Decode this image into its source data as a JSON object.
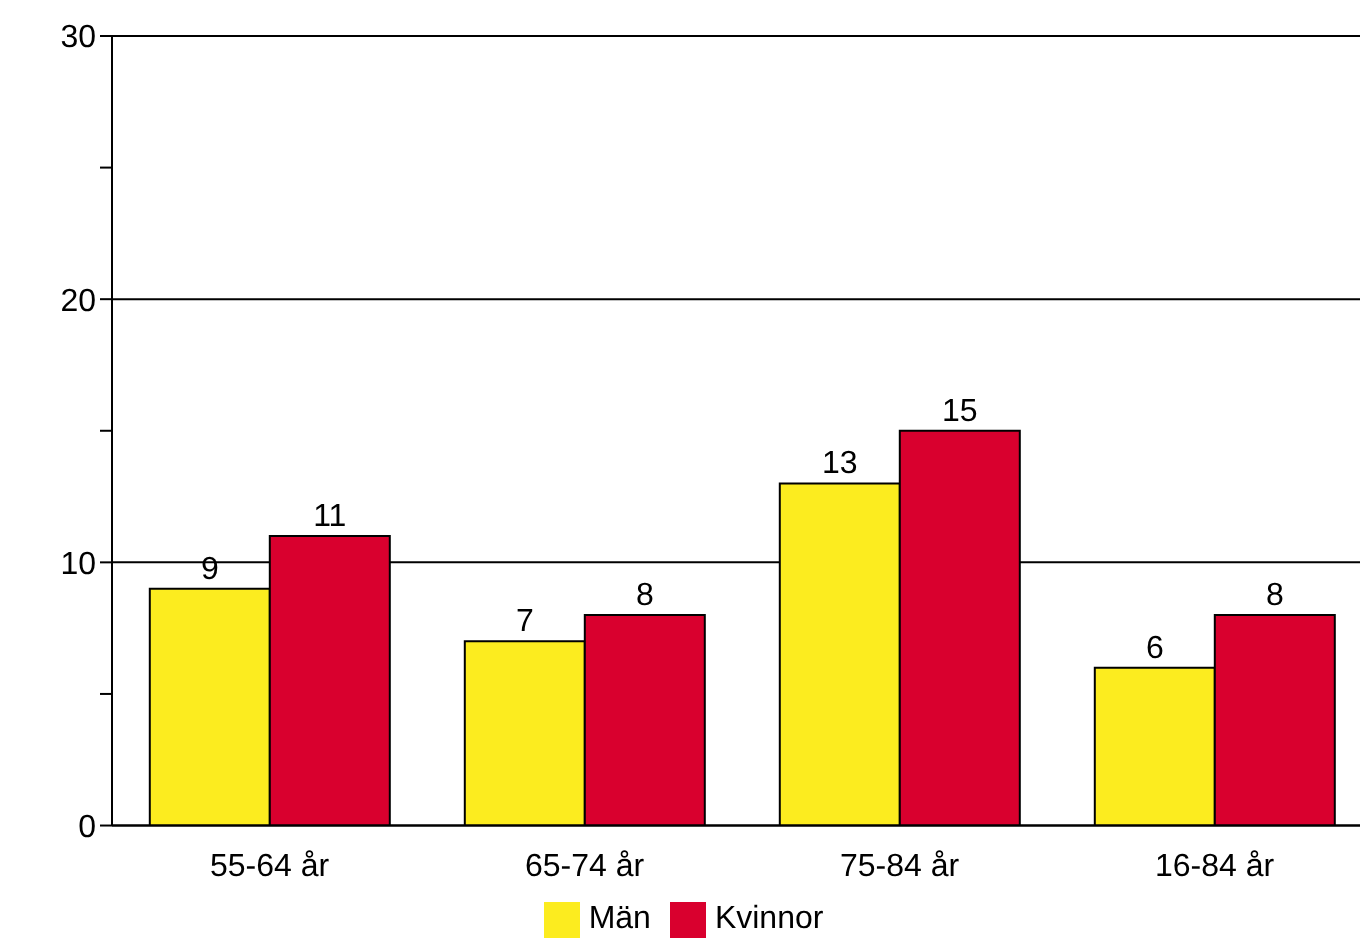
{
  "chart_data": {
    "type": "bar",
    "categories": [
      "55-64 år",
      "65-74 år",
      "75-84 år",
      "16-84 år"
    ],
    "series": [
      {
        "name": "Män",
        "color": "#fcec1f",
        "values": [
          9,
          7,
          13,
          6
        ]
      },
      {
        "name": "Kvinnor",
        "color": "#d9002e",
        "values": [
          11,
          8,
          15,
          8
        ]
      }
    ],
    "ylim": [
      0,
      30
    ],
    "yticks": [
      0,
      {
        "value": 5,
        "label": null
      },
      10,
      {
        "value": 15,
        "label": null
      },
      20,
      {
        "value": 25,
        "label": null
      },
      30
    ],
    "grid": "y",
    "legend": "bottom",
    "data_labels": true
  }
}
